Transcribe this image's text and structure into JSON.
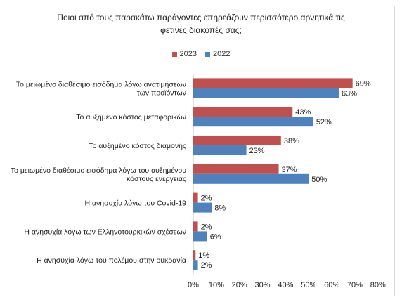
{
  "chart_data": {
    "type": "bar",
    "orientation": "horizontal",
    "title": [
      "Ποιοι από τους παρακάτω παράγοντες επηρεάζουν περισσότερο αρνητικά τις",
      "φετινές διακοπές σας;"
    ],
    "categories": [
      [
        "Το μειωμένο διαθέσιμο εισόδημα λόγω ανατιμήσεων",
        "των προϊόντων"
      ],
      [
        "Το αυξημένο κόστος μεταφορικών"
      ],
      [
        "Το αυξημένο κόστος διαμονής"
      ],
      [
        "Το μειωμένο διαθέσιμο εισόδημα λόγω του αυξημένου",
        "κόστους ενέργειας"
      ],
      [
        "Η ανησυχία λόγω του Covid-19"
      ],
      [
        "Η ανησυχία λόγω των Ελληνοτουρκικών σχέσεων"
      ],
      [
        "Η ανησυχία λόγω του πολέμου στην ουκρανία"
      ]
    ],
    "series": [
      {
        "name": "2023",
        "color": "#c0504d",
        "values": [
          69,
          43,
          38,
          37,
          2,
          2,
          1
        ]
      },
      {
        "name": "2022",
        "color": "#4f81bd",
        "values": [
          63,
          52,
          23,
          50,
          8,
          6,
          2
        ]
      }
    ],
    "xlim": [
      0,
      80
    ],
    "ticks": [
      0,
      10,
      20,
      30,
      40,
      50,
      60,
      70,
      80
    ],
    "value_suffix": "%",
    "legend_position": "top",
    "grid": false
  }
}
